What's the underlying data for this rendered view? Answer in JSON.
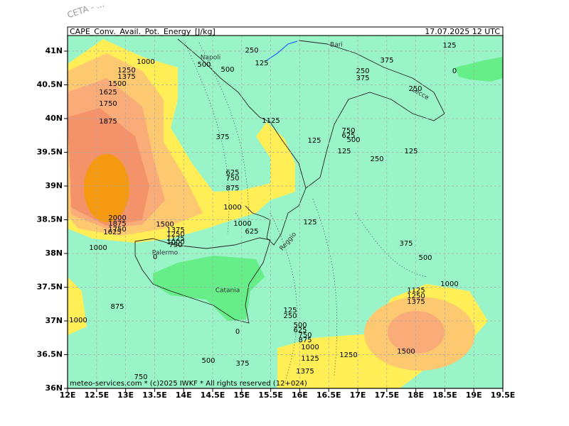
{
  "header": {
    "title": "CAPE_Conv._Avail._Pot._Energy_[J/kg]",
    "valid_time": "17.07.2025 12 UTC",
    "watermark": "CETA - ..."
  },
  "footer": "meteo-services.com * (c)2025 IWKF * All rights reserved (12+024)",
  "lat_ticks": [
    "41N",
    "40.5N",
    "40N",
    "39.5N",
    "39N",
    "38.5N",
    "38N",
    "37.5N",
    "37N",
    "36.5N",
    "36N"
  ],
  "lon_ticks": [
    "12E",
    "12.5E",
    "13E",
    "13.5E",
    "14E",
    "14.5E",
    "15E",
    "15.5E",
    "16E",
    "16.5E",
    "17E",
    "17.5E",
    "18E",
    "18.5E",
    "19E",
    "19.5E"
  ],
  "places": [
    "Napoli",
    "Bari",
    "Lecce",
    "Palermo",
    "Catania",
    "Reggio"
  ],
  "contour_labels": [
    1000,
    1250,
    1375,
    1500,
    1625,
    1750,
    1875,
    2000,
    1875,
    1750,
    1625,
    1000,
    1500,
    1375,
    1250,
    1125,
    1000,
    750,
    875,
    1000,
    750,
    500,
    375,
    0,
    500,
    500,
    250,
    125,
    375,
    625,
    750,
    875,
    1000,
    1000,
    625,
    1125,
    125,
    750,
    625,
    500,
    125,
    250,
    125,
    250,
    375,
    375,
    250,
    125,
    0,
    125,
    375,
    500,
    1000,
    1125,
    1250,
    1375,
    125,
    250,
    500,
    625,
    750,
    875,
    1000,
    1125,
    1250,
    1500,
    1375,
    0
  ]
}
